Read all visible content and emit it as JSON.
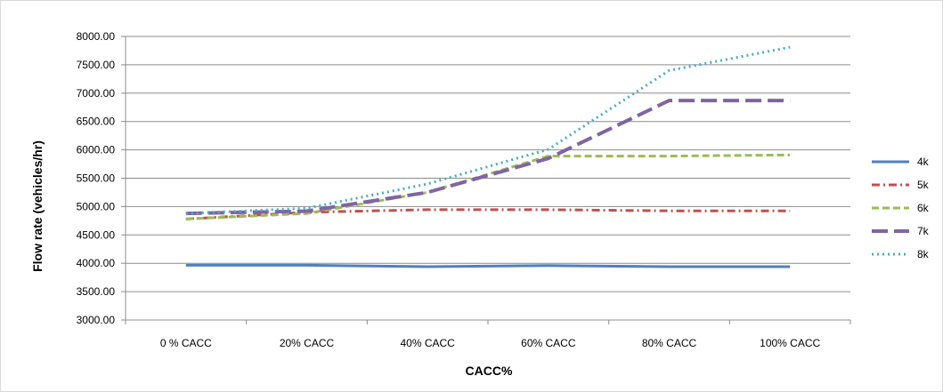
{
  "chart_data": {
    "type": "line",
    "title": "",
    "xlabel": "CACC%",
    "ylabel": "Flow rate (vehicles/hr)",
    "categories": [
      "0 % CACC",
      "20% CACC",
      "40% CACC",
      "60% CACC",
      "80% CACC",
      "100% CACC"
    ],
    "ylim": [
      3000,
      8000
    ],
    "yticks": [
      "8000.00",
      "7500.00",
      "7000.00",
      "6500.00",
      "6000.00",
      "5500.00",
      "5000.00",
      "4500.00",
      "4000.00",
      "3500.00",
      "3000.00"
    ],
    "grid": "horizontal",
    "legend_position": "right",
    "series": [
      {
        "name": "4k",
        "values": [
          3965,
          3965,
          3940,
          3960,
          3940,
          3940
        ],
        "color": "#4F81BD",
        "dash": "solid"
      },
      {
        "name": "5k",
        "values": [
          4780,
          4900,
          4945,
          4945,
          4925,
          4925
        ],
        "color": "#C0504D",
        "dash": "dashdot"
      },
      {
        "name": "6k",
        "values": [
          4780,
          4880,
          5250,
          5890,
          5890,
          5910
        ],
        "color": "#9BBB59",
        "dash": "dash"
      },
      {
        "name": "7k",
        "values": [
          4880,
          4920,
          5250,
          5850,
          6870,
          6870
        ],
        "color": "#8064A2",
        "dash": "longdash"
      },
      {
        "name": "8k",
        "values": [
          4880,
          4970,
          5400,
          6010,
          7400,
          7810
        ],
        "color": "#4BACC6",
        "dash": "dot"
      }
    ]
  }
}
